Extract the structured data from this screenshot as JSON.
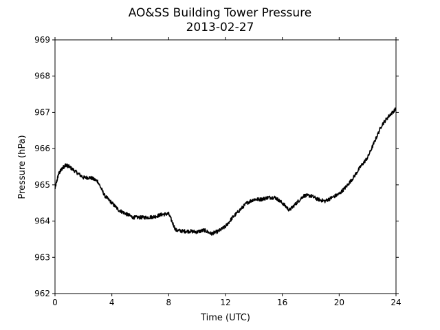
{
  "chart_data": {
    "type": "line",
    "title": "AO&SS Building Tower Pressure",
    "subtitle": "2013-02-27",
    "xlabel": "Time (UTC)",
    "ylabel": "Pressure (hPa)",
    "xlim": [
      0,
      24
    ],
    "ylim": [
      962,
      969
    ],
    "xticks": [
      0,
      4,
      8,
      12,
      16,
      20,
      24
    ],
    "yticks": [
      962,
      963,
      964,
      965,
      966,
      967,
      968,
      969
    ],
    "xtick_labels": [
      "0",
      "4",
      "8",
      "12",
      "16",
      "20",
      "24"
    ],
    "ytick_labels": [
      "962",
      "963",
      "964",
      "965",
      "966",
      "967",
      "968",
      "969"
    ],
    "grid": false,
    "legend": "none",
    "series": [
      {
        "color": "#000000",
        "x": [
          0,
          0.25,
          0.5,
          0.75,
          1.0,
          1.5,
          2.0,
          2.5,
          3.0,
          3.5,
          4.0,
          4.5,
          5.0,
          5.5,
          6.0,
          6.5,
          7.0,
          7.5,
          8.0,
          8.5,
          9.0,
          9.5,
          10.0,
          10.5,
          11.0,
          11.5,
          12.0,
          12.5,
          13.0,
          13.5,
          14.0,
          14.5,
          15.0,
          15.5,
          16.0,
          16.5,
          17.0,
          17.5,
          18.0,
          18.5,
          19.0,
          19.5,
          20.0,
          20.5,
          21.0,
          21.5,
          22.0,
          22.5,
          23.0,
          23.5,
          24.0
        ],
        "y": [
          964.9,
          965.3,
          965.45,
          965.55,
          965.5,
          965.35,
          965.2,
          965.2,
          965.1,
          964.7,
          964.5,
          964.3,
          964.2,
          964.1,
          964.1,
          964.1,
          964.12,
          964.18,
          964.2,
          963.75,
          963.72,
          963.72,
          963.7,
          963.75,
          963.65,
          963.72,
          963.85,
          964.1,
          964.3,
          964.5,
          964.6,
          964.6,
          964.65,
          964.65,
          964.5,
          964.3,
          964.5,
          964.7,
          964.7,
          964.6,
          964.55,
          964.65,
          964.75,
          964.95,
          965.2,
          965.5,
          965.75,
          966.2,
          966.65,
          966.9,
          967.1
        ]
      }
    ]
  }
}
